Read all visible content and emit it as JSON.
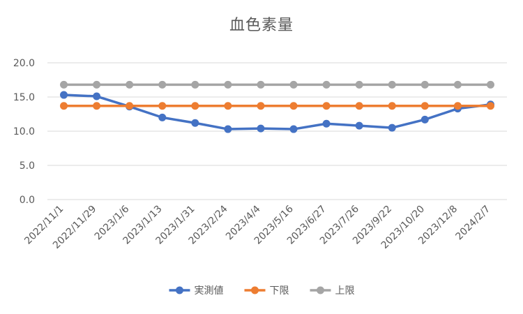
{
  "chart_data": {
    "type": "line",
    "title": "血色素量",
    "categories": [
      "2022/11/1",
      "2022/11/29",
      "2023/1/6",
      "2023/1/13",
      "2023/1/31",
      "2023/2/24",
      "2023/4/4",
      "2023/5/16",
      "2023/6/27",
      "2023/7/26",
      "2023/9/22",
      "2023/10/20",
      "2023/12/8",
      "2024/2/7"
    ],
    "series": [
      {
        "name": "実測値",
        "color": "#4472C4",
        "values": [
          15.3,
          15.1,
          13.6,
          12.0,
          11.2,
          10.3,
          10.4,
          10.3,
          11.1,
          10.8,
          10.5,
          11.7,
          13.3,
          13.9
        ]
      },
      {
        "name": "下限",
        "color": "#ED7D31",
        "values": [
          13.7,
          13.7,
          13.7,
          13.7,
          13.7,
          13.7,
          13.7,
          13.7,
          13.7,
          13.7,
          13.7,
          13.7,
          13.7,
          13.7
        ]
      },
      {
        "name": "上限",
        "color": "#A5A5A5",
        "values": [
          16.8,
          16.8,
          16.8,
          16.8,
          16.8,
          16.8,
          16.8,
          16.8,
          16.8,
          16.8,
          16.8,
          16.8,
          16.8,
          16.8
        ]
      }
    ],
    "ylim": [
      0,
      20
    ],
    "yticks": [
      "0.0",
      "5.0",
      "10.0",
      "15.0",
      "20.0"
    ],
    "grid": true,
    "legend": "bottom"
  }
}
